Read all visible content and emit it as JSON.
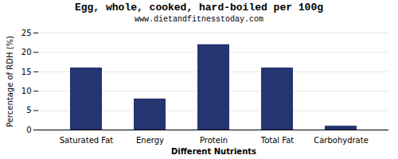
{
  "chart_data": {
    "type": "bar",
    "title": "Egg, whole, cooked, hard-boiled per 100g",
    "subtitle": "www.dietandfitnesstoday.com",
    "xlabel": "Different Nutrients",
    "ylabel": "Percentage of RDH (%)",
    "categories": [
      "Saturated Fat",
      "Energy",
      "Protein",
      "Total Fat",
      "Carbohydrate"
    ],
    "values": [
      16,
      8,
      22,
      16,
      1
    ],
    "color": "#253570",
    "ylim": [
      0,
      25
    ],
    "yticks": [
      0,
      5,
      10,
      15,
      20,
      25
    ],
    "grid": true
  }
}
